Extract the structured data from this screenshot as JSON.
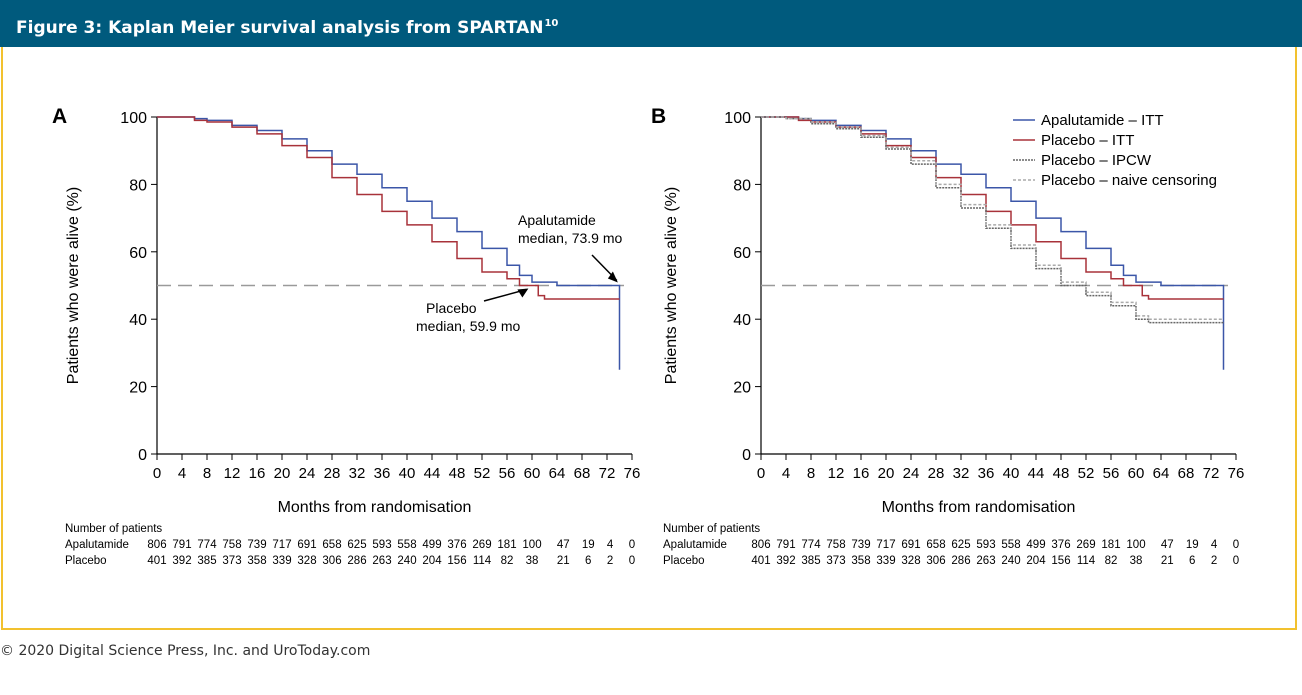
{
  "figure": {
    "title": "Figure 3: Kaplan Meier survival analysis from SPARTAN",
    "title_ref": "10",
    "copyright": "© 2020 Digital Science Press, Inc. and UroToday.com",
    "header_color": "#005a7d",
    "frame_color": "#f2c12e"
  },
  "chart_data": [
    {
      "type": "line",
      "panel": "A",
      "xlabel": "Months from randomisation",
      "ylabel": "Patients who were alive (%)",
      "xlim": [
        0,
        76
      ],
      "ylim": [
        0,
        100
      ],
      "x_ticks": [
        0,
        4,
        8,
        12,
        16,
        20,
        24,
        28,
        32,
        36,
        40,
        44,
        48,
        52,
        56,
        60,
        64,
        68,
        72,
        76
      ],
      "y_ticks": [
        0,
        20,
        40,
        60,
        80,
        100
      ],
      "reference_line": 50,
      "series": [
        {
          "name": "Apalutamide",
          "color": "#3b56a8",
          "x": [
            0,
            4,
            6,
            8,
            12,
            16,
            20,
            24,
            28,
            32,
            36,
            40,
            44,
            48,
            52,
            56,
            58,
            60,
            62,
            64,
            66,
            68,
            70,
            72,
            73.9,
            74,
            74
          ],
          "y": [
            100,
            100,
            99.5,
            99,
            97.5,
            96,
            93.5,
            90,
            86,
            83,
            79,
            75,
            70,
            66,
            61,
            56,
            53,
            51,
            51,
            50,
            50,
            50,
            50,
            50,
            50,
            50,
            25
          ]
        },
        {
          "name": "Placebo",
          "color": "#a8323a",
          "x": [
            0,
            4,
            6,
            8,
            12,
            16,
            20,
            24,
            28,
            32,
            36,
            40,
            44,
            48,
            52,
            56,
            58,
            59.9,
            61,
            62,
            66,
            70,
            74
          ],
          "y": [
            100,
            100,
            99,
            98.5,
            97,
            95,
            91.5,
            88,
            82,
            77,
            72,
            68,
            63,
            58,
            54,
            52,
            50,
            50,
            47,
            46,
            46,
            46,
            46
          ]
        }
      ],
      "annotations": [
        {
          "label": "Apalutamide",
          "label2": "median, 73.9 mo",
          "x": 73.9,
          "y": 50
        },
        {
          "label": "Placebo",
          "label2": "median, 59.9 mo",
          "x": 59.9,
          "y": 50
        }
      ],
      "risk_table": {
        "title": "Number of patients",
        "rows": [
          {
            "label": "Apalutamide",
            "values": [
              "806",
              "791",
              "774",
              "758",
              "739",
              "717",
              "691",
              "658",
              "625",
              "593",
              "558",
              "499",
              "376",
              "269",
              "181",
              "100",
              "47",
              "19",
              "4",
              "0"
            ]
          },
          {
            "label": "Placebo",
            "values": [
              "401",
              "392",
              "385",
              "373",
              "358",
              "339",
              "328",
              "306",
              "286",
              "263",
              "240",
              "204",
              "156",
              "114",
              "82",
              "38",
              "21",
              "6",
              "2",
              "0"
            ]
          }
        ]
      }
    },
    {
      "type": "line",
      "panel": "B",
      "xlabel": "Months from randomisation",
      "ylabel": "Patients who were alive (%)",
      "xlim": [
        0,
        76
      ],
      "ylim": [
        0,
        100
      ],
      "x_ticks": [
        0,
        4,
        8,
        12,
        16,
        20,
        24,
        28,
        32,
        36,
        40,
        44,
        48,
        52,
        56,
        60,
        64,
        68,
        72,
        76
      ],
      "y_ticks": [
        0,
        20,
        40,
        60,
        80,
        100
      ],
      "reference_line": 50,
      "legend_position": "top-right",
      "series": [
        {
          "name": "Apalutamide – ITT",
          "color": "#3b56a8",
          "dash": "",
          "x": [
            0,
            4,
            6,
            8,
            12,
            16,
            20,
            24,
            28,
            32,
            36,
            40,
            44,
            48,
            52,
            56,
            58,
            60,
            62,
            64,
            66,
            68,
            70,
            72,
            73.9,
            74,
            74
          ],
          "y": [
            100,
            100,
            99.5,
            99,
            97.5,
            96,
            93.5,
            90,
            86,
            83,
            79,
            75,
            70,
            66,
            61,
            56,
            53,
            51,
            51,
            50,
            50,
            50,
            50,
            50,
            50,
            50,
            25
          ]
        },
        {
          "name": "Placebo – ITT",
          "color": "#a8323a",
          "dash": "",
          "x": [
            0,
            4,
            6,
            8,
            12,
            16,
            20,
            24,
            28,
            32,
            36,
            40,
            44,
            48,
            52,
            56,
            58,
            59.9,
            61,
            62,
            66,
            70,
            74
          ],
          "y": [
            100,
            100,
            99,
            98.5,
            97,
            95,
            91.5,
            88,
            82,
            77,
            72,
            68,
            63,
            58,
            54,
            52,
            50,
            50,
            47,
            46,
            46,
            46,
            46
          ]
        },
        {
          "name": "Placebo – IPCW",
          "color": "#666666",
          "dash": "2 1",
          "x": [
            0,
            4,
            8,
            12,
            16,
            20,
            24,
            28,
            32,
            36,
            40,
            44,
            48,
            52,
            56,
            60,
            62,
            66,
            70,
            74
          ],
          "y": [
            100,
            99.5,
            98,
            96.5,
            94,
            90.5,
            86,
            79,
            73,
            67,
            61,
            55,
            50,
            47,
            44,
            40,
            39,
            39,
            39,
            39
          ]
        },
        {
          "name": "Placebo – naive censoring",
          "color": "#aaaaaa",
          "dash": "3 2",
          "x": [
            0,
            4,
            8,
            12,
            16,
            20,
            24,
            28,
            32,
            36,
            40,
            44,
            48,
            52,
            56,
            60,
            62,
            66,
            70,
            74
          ],
          "y": [
            100,
            99.5,
            98.5,
            97,
            94.5,
            91,
            87,
            80,
            74,
            68,
            62,
            56,
            51,
            48,
            45,
            41,
            40,
            40,
            40,
            40
          ]
        }
      ],
      "risk_table": {
        "title": "Number of patients",
        "rows": [
          {
            "label": "Apalutamide",
            "values": [
              "806",
              "791",
              "774",
              "758",
              "739",
              "717",
              "691",
              "658",
              "625",
              "593",
              "558",
              "499",
              "376",
              "269",
              "181",
              "100",
              "47",
              "19",
              "4",
              "0"
            ]
          },
          {
            "label": "Placebo",
            "values": [
              "401",
              "392",
              "385",
              "373",
              "358",
              "339",
              "328",
              "306",
              "286",
              "263",
              "240",
              "204",
              "156",
              "114",
              "82",
              "38",
              "21",
              "6",
              "2",
              "0"
            ]
          }
        ]
      }
    }
  ]
}
